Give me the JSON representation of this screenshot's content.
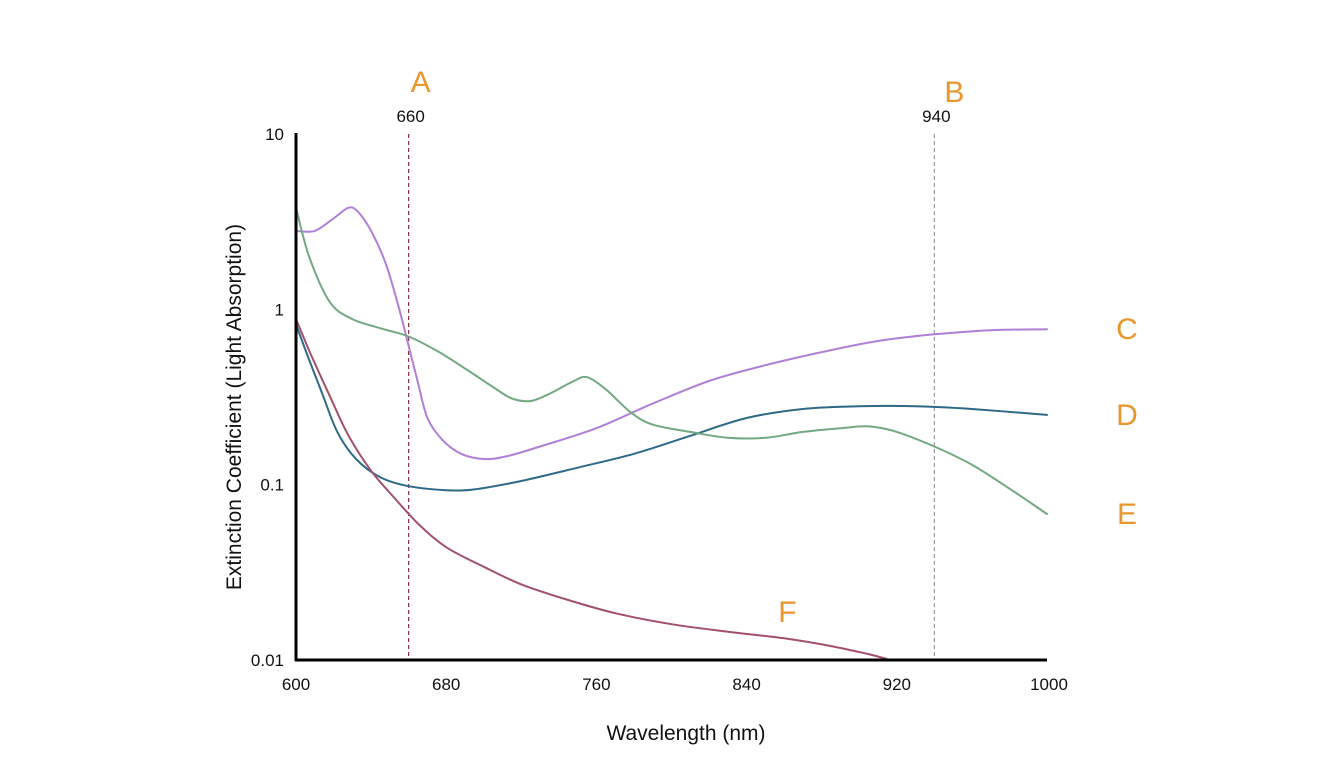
{
  "chart_data": {
    "type": "line",
    "title": "",
    "xlabel": "Wavelength (nm)",
    "ylabel": "Extinction Coefficient (Light Absorption)",
    "xlim": [
      600,
      1000
    ],
    "ylim": [
      0.01,
      10
    ],
    "yscale": "log",
    "x_ticks": [
      600,
      680,
      760,
      840,
      920,
      1000
    ],
    "y_ticks": [
      10,
      1,
      0.1,
      0.01
    ],
    "grid": false,
    "accent_color": "#e8962d",
    "axis_color": "#000000",
    "reference_lines": [
      {
        "x": 660,
        "label": "660",
        "marker": "A",
        "color": "#8a2a44"
      },
      {
        "x": 940,
        "label": "940",
        "marker": "B",
        "color": "#9a9aa6"
      }
    ],
    "series": [
      {
        "name": "C",
        "color": "#b07fd6",
        "points": [
          [
            600,
            2.8
          ],
          [
            610,
            2.8
          ],
          [
            620,
            3.3
          ],
          [
            628,
            3.8
          ],
          [
            633,
            3.6
          ],
          [
            640,
            2.8
          ],
          [
            648,
            1.8
          ],
          [
            655,
            1.0
          ],
          [
            660,
            0.62
          ],
          [
            665,
            0.38
          ],
          [
            670,
            0.24
          ],
          [
            678,
            0.18
          ],
          [
            688,
            0.15
          ],
          [
            700,
            0.14
          ],
          [
            712,
            0.145
          ],
          [
            730,
            0.165
          ],
          [
            760,
            0.21
          ],
          [
            790,
            0.29
          ],
          [
            820,
            0.39
          ],
          [
            850,
            0.48
          ],
          [
            880,
            0.57
          ],
          [
            910,
            0.66
          ],
          [
            940,
            0.72
          ],
          [
            970,
            0.76
          ],
          [
            1000,
            0.77
          ]
        ]
      },
      {
        "name": "D",
        "color": "#2e6a88",
        "points": [
          [
            600,
            0.82
          ],
          [
            606,
            0.55
          ],
          [
            614,
            0.33
          ],
          [
            622,
            0.2
          ],
          [
            632,
            0.14
          ],
          [
            645,
            0.11
          ],
          [
            660,
            0.098
          ],
          [
            680,
            0.093
          ],
          [
            695,
            0.094
          ],
          [
            720,
            0.105
          ],
          [
            750,
            0.125
          ],
          [
            780,
            0.15
          ],
          [
            810,
            0.19
          ],
          [
            840,
            0.24
          ],
          [
            870,
            0.27
          ],
          [
            900,
            0.28
          ],
          [
            930,
            0.28
          ],
          [
            960,
            0.27
          ],
          [
            1000,
            0.25
          ]
        ]
      },
      {
        "name": "E",
        "color": "#72a882",
        "points": [
          [
            600,
            3.8
          ],
          [
            607,
            2.0
          ],
          [
            618,
            1.1
          ],
          [
            630,
            0.88
          ],
          [
            645,
            0.78
          ],
          [
            660,
            0.7
          ],
          [
            675,
            0.58
          ],
          [
            690,
            0.46
          ],
          [
            705,
            0.36
          ],
          [
            715,
            0.31
          ],
          [
            725,
            0.3
          ],
          [
            735,
            0.33
          ],
          [
            748,
            0.39
          ],
          [
            755,
            0.41
          ],
          [
            765,
            0.35
          ],
          [
            778,
            0.26
          ],
          [
            790,
            0.22
          ],
          [
            810,
            0.2
          ],
          [
            830,
            0.185
          ],
          [
            850,
            0.185
          ],
          [
            870,
            0.2
          ],
          [
            890,
            0.21
          ],
          [
            905,
            0.215
          ],
          [
            920,
            0.2
          ],
          [
            940,
            0.165
          ],
          [
            960,
            0.13
          ],
          [
            980,
            0.095
          ],
          [
            1000,
            0.068
          ]
        ]
      },
      {
        "name": "F",
        "color": "#a3506a",
        "points": [
          [
            600,
            0.88
          ],
          [
            608,
            0.55
          ],
          [
            618,
            0.32
          ],
          [
            628,
            0.19
          ],
          [
            640,
            0.12
          ],
          [
            652,
            0.085
          ],
          [
            665,
            0.06
          ],
          [
            680,
            0.044
          ],
          [
            700,
            0.034
          ],
          [
            720,
            0.027
          ],
          [
            745,
            0.022
          ],
          [
            770,
            0.0185
          ],
          [
            800,
            0.016
          ],
          [
            830,
            0.0145
          ],
          [
            860,
            0.0133
          ],
          [
            885,
            0.012
          ],
          [
            905,
            0.0108
          ],
          [
            915,
            0.0101
          ]
        ]
      }
    ],
    "legend": [
      "C",
      "D",
      "E",
      "F"
    ]
  }
}
